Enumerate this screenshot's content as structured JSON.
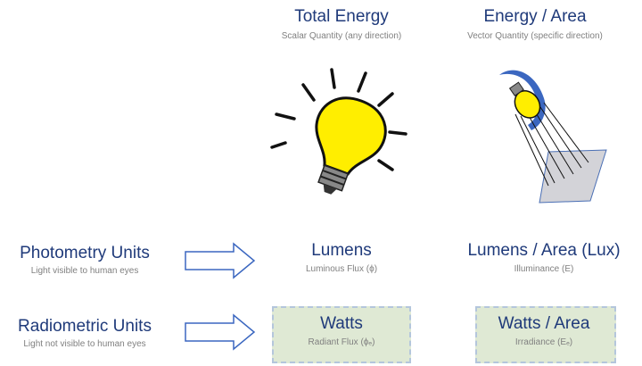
{
  "columns": [
    {
      "title": "Total Energy",
      "subtitle": "Scalar Quantity (any direction)"
    },
    {
      "title": "Energy / Area",
      "subtitle": "Vector Quantity (specific direction)"
    }
  ],
  "rows": [
    {
      "title": "Photometry Units",
      "subtitle": "Light visible to human eyes",
      "cells": [
        {
          "title": "Lumens",
          "subtitle": "Luminous Flux (ϕ)"
        },
        {
          "title": "Lumens / Area (Lux)",
          "subtitle": "Illuminance (E)"
        }
      ]
    },
    {
      "title": "Radiometric Units",
      "subtitle": "Light not visible to human eyes",
      "cells": [
        {
          "title": "Watts",
          "subtitle": "Radiant Flux (ϕₑ)"
        },
        {
          "title": "Watts / Area",
          "subtitle": "Irradiance (Eₑ)"
        }
      ]
    }
  ]
}
